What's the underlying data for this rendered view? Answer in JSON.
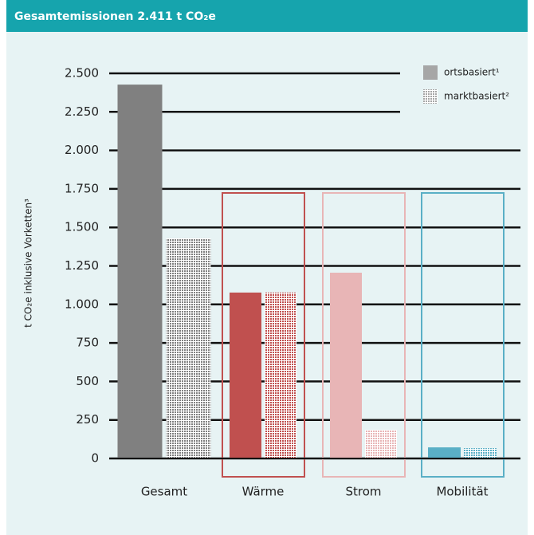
{
  "chart_data": {
    "type": "bar",
    "title": "Gesamtemissionen 2.411 t CO₂e",
    "y_label": "t CO₂e inklusive Vorketten³",
    "categories": [
      "Gesamt",
      "Wärme",
      "Strom",
      "Mobilität"
    ],
    "category_colors": [
      "#808080",
      "#c0504f",
      "#e8b5b6",
      "#5aafc6"
    ],
    "framed": [
      false,
      true,
      true,
      true
    ],
    "series": [
      {
        "name": "ortsbasiert¹",
        "color": "#a6a6a6",
        "values": [
          2427,
          1077,
          1206,
          72
        ]
      },
      {
        "name": "marktbasiert²",
        "color": "#a6a6a6",
        "values": [
          1429,
          1077,
          186,
          67
        ]
      }
    ],
    "ylim": [
      0,
      2500
    ],
    "yticks": [
      0,
      250,
      500,
      750,
      {
        "value": 1000,
        "label": "1.000"
      },
      {
        "value": 1250,
        "label": "1.250"
      },
      {
        "value": 1500,
        "label": "1.500"
      },
      {
        "value": 1750,
        "label": "1.750"
      },
      {
        "value": 2000,
        "label": "2.000"
      },
      {
        "value": 2250,
        "label": "2.250"
      },
      {
        "value": 2500,
        "label": "2.500"
      }
    ],
    "grid": true,
    "legend": "top-right"
  }
}
